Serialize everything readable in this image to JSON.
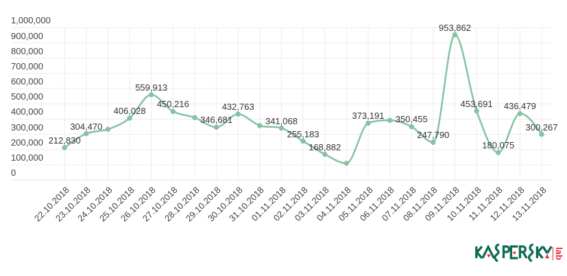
{
  "chart_data": {
    "type": "line",
    "title": "",
    "categories": [
      "22.10.2018",
      "23.10.2018",
      "24.10.2018",
      "25.10.2018",
      "26.10.2018",
      "27.10.2018",
      "28.10.2018",
      "29.10.2018",
      "30.10.2018",
      "31.10.2018",
      "01.11.2018",
      "02.11.2018",
      "03.11.2018",
      "04.11.2018",
      "05.11.2018",
      "06.11.2018",
      "07.11.2018",
      "08.11.2018",
      "09.11.2018",
      "10.11.2018",
      "11.11.2018",
      "12.11.2018",
      "13.11.2018"
    ],
    "values": [
      212830,
      304470,
      333000,
      406028,
      559913,
      450216,
      410000,
      346681,
      432763,
      357000,
      341068,
      255183,
      168882,
      110000,
      373191,
      392000,
      350455,
      247790,
      953862,
      453691,
      180075,
      436479,
      300267
    ],
    "point_labels": [
      "212,830",
      "304,470",
      "",
      "406,028",
      "559,913",
      "450,216",
      "",
      "346,681",
      "432,763",
      "",
      "341,068",
      "255,183",
      "168,882",
      "",
      "373,191",
      "",
      "350,455",
      "247,790",
      "953,862",
      "453,691",
      "180,075",
      "436,479",
      "300,267"
    ],
    "ylim": [
      0,
      1000000
    ],
    "y_tick_step": 100000,
    "y_tick_labels": [
      "0",
      "100,000",
      "200,000",
      "300,000",
      "400,000",
      "500,000",
      "600,000",
      "700,000",
      "800,000",
      "900,000",
      "1,000,000"
    ],
    "xlabel": "",
    "ylabel": "",
    "legend": "none",
    "grid": true,
    "line_smooth": true,
    "series_color": "#85c2a2",
    "point_color": "#85c2a2",
    "grid_color": "#ececec",
    "axis_line_color": "#e4e4e4",
    "label_color": "#3f3f3f"
  },
  "branding": {
    "wordmark": "KASPERSKY",
    "wordmark_sub": "lab",
    "brand_green": "#0e6a55",
    "brand_red": "#e8232b"
  }
}
